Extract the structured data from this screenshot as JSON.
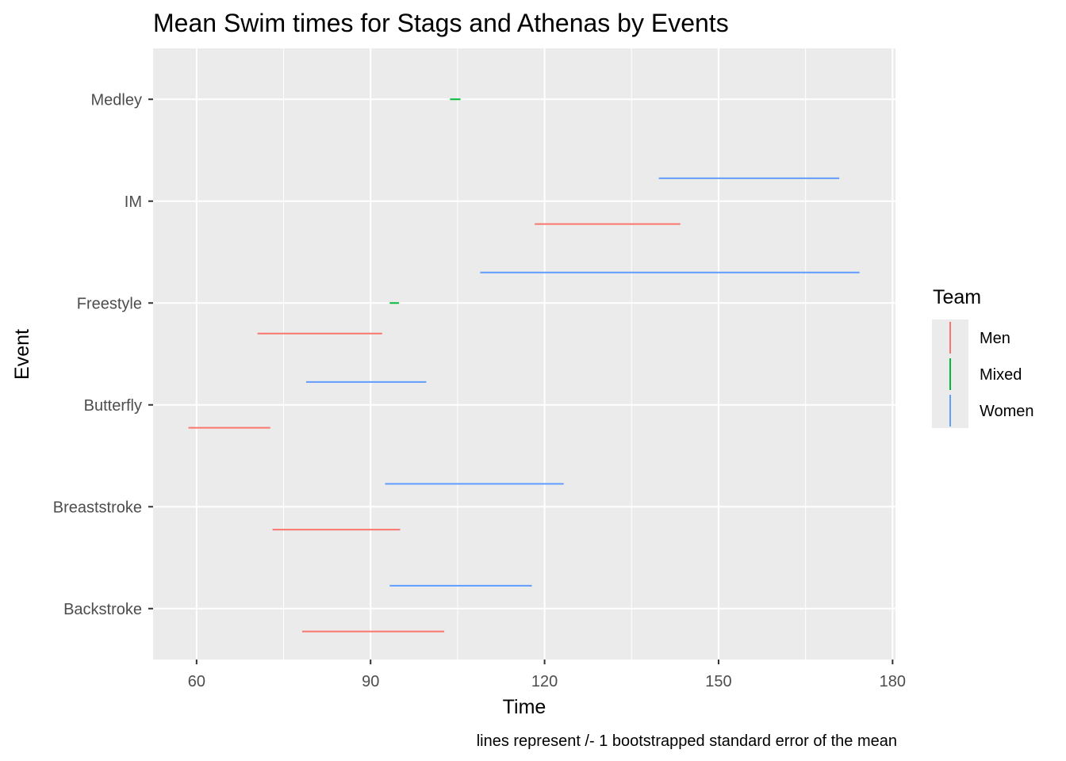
{
  "chart_data": {
    "type": "errorbar-horizontal",
    "title": "Mean Swim times for Stags and Athenas by Events",
    "xlabel": "Time",
    "ylabel": "Event",
    "caption": "lines represent /- 1 bootstrapped standard error of the mean",
    "xlim": [
      52.5,
      180.5
    ],
    "x_ticks": [
      60,
      90,
      120,
      150,
      180
    ],
    "categories": [
      "Backstroke",
      "Breaststroke",
      "Butterfly",
      "Freestyle",
      "IM",
      "Medley"
    ],
    "grid": true,
    "legend": {
      "title": "Team",
      "position": "right",
      "entries": [
        {
          "name": "Men",
          "color": "#F8766D"
        },
        {
          "name": "Mixed",
          "color": "#00BA38"
        },
        {
          "name": "Women",
          "color": "#619CFF"
        }
      ]
    },
    "series": [
      {
        "name": "Men",
        "color": "#F8766D",
        "intervals": [
          {
            "event": "Backstroke",
            "xmin": 78.2,
            "xmax": 102.7
          },
          {
            "event": "Breaststroke",
            "xmin": 73.1,
            "xmax": 95.1
          },
          {
            "event": "Butterfly",
            "xmin": 58.6,
            "xmax": 72.7
          },
          {
            "event": "Freestyle",
            "xmin": 70.5,
            "xmax": 92.0
          },
          {
            "event": "IM",
            "xmin": 118.3,
            "xmax": 143.4
          }
        ]
      },
      {
        "name": "Mixed",
        "color": "#00BA38",
        "intervals": [
          {
            "event": "Freestyle",
            "xmin": 93.3,
            "xmax": 94.9
          },
          {
            "event": "Medley",
            "xmin": 103.7,
            "xmax": 105.5
          }
        ]
      },
      {
        "name": "Women",
        "color": "#619CFF",
        "intervals": [
          {
            "event": "Backstroke",
            "xmin": 93.3,
            "xmax": 117.8
          },
          {
            "event": "Breaststroke",
            "xmin": 92.5,
            "xmax": 123.3
          },
          {
            "event": "Butterfly",
            "xmin": 78.9,
            "xmax": 99.6
          },
          {
            "event": "Freestyle",
            "xmin": 108.9,
            "xmax": 174.3
          },
          {
            "event": "IM",
            "xmin": 139.7,
            "xmax": 170.8
          }
        ]
      }
    ]
  }
}
